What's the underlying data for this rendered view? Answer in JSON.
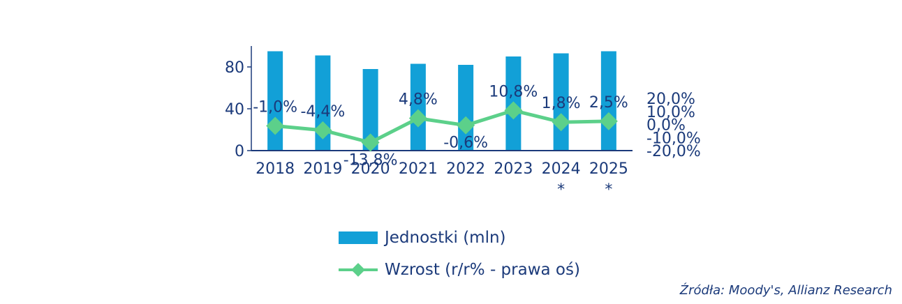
{
  "chart_data": {
    "type": "bar",
    "categories": [
      "2018",
      "2019",
      "2020",
      "2021",
      "2022",
      "2023",
      "2024 *",
      "2025 *"
    ],
    "series": [
      {
        "name": "Jednostki (mln)",
        "type": "bar",
        "axis": "left",
        "values": [
          95,
          91,
          78,
          83,
          82,
          90,
          93,
          95
        ]
      },
      {
        "name": "Wzrost (r/r% - prawa oś)",
        "type": "line",
        "axis": "right",
        "values": [
          -1.0,
          -4.4,
          -13.8,
          4.8,
          -0.6,
          10.8,
          1.8,
          2.5
        ],
        "labels": [
          "-1,0%",
          "-4,4%",
          "-13,8%",
          "4,8%",
          "-0,6%",
          "10,8%",
          "1,8%",
          "2,5%"
        ]
      }
    ],
    "y_left": {
      "ticks": [
        0,
        40,
        80
      ],
      "tick_labels": [
        "0",
        "40",
        "80"
      ],
      "range": [
        0,
        100
      ]
    },
    "y_right": {
      "ticks": [
        -20,
        -10,
        0,
        10,
        20
      ],
      "tick_labels": [
        "-20,0%",
        "-10,0%",
        "0,0%",
        "10,0%",
        "20,0%"
      ],
      "range": [
        -20,
        20
      ]
    },
    "colors": {
      "bars": "#12a0d7",
      "line": "#5cd08a",
      "text": "#1b3a7a",
      "axis": "#1b3a7a"
    },
    "grid": false,
    "legend_position": "bottom"
  },
  "legend": {
    "bar_label": "Jednostki (mln)",
    "line_label": "Wzrost (r/r% - prawa oś)"
  },
  "source": "Źródła: Moody's, Allianz Research"
}
